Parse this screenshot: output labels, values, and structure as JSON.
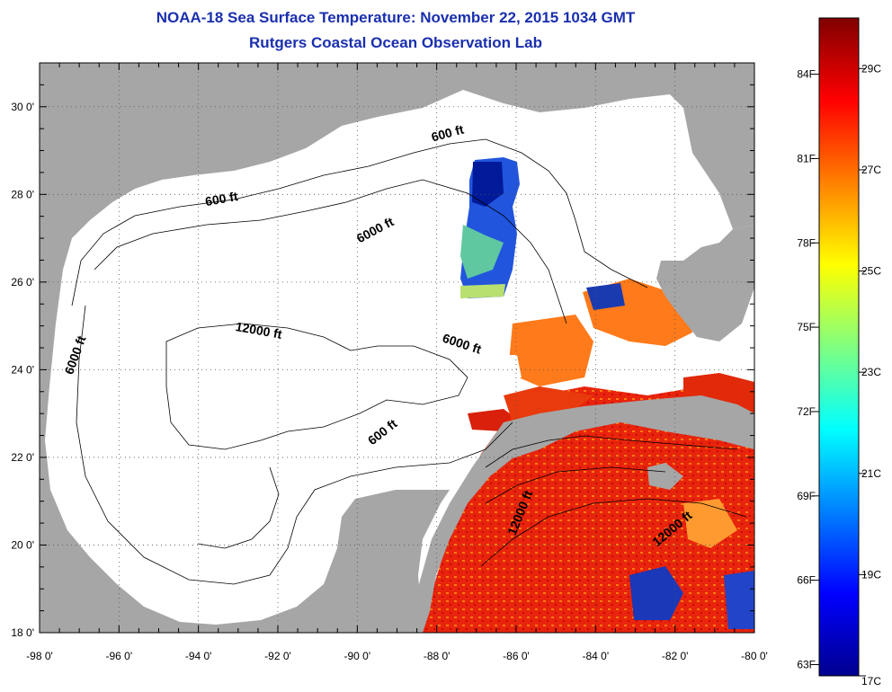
{
  "title": "NOAA-18 Sea Surface Temperature:  November 22, 2015 1034 GMT",
  "subtitle": "Rutgers Coastal Ocean Observation Lab",
  "map": {
    "lon_range": [
      -98,
      -80
    ],
    "lat_range": [
      18,
      31
    ],
    "lon_ticks": [
      {
        "value": -98,
        "label": "-98 0'"
      },
      {
        "value": -96,
        "label": "-96 0'"
      },
      {
        "value": -94,
        "label": "-94 0'"
      },
      {
        "value": -92,
        "label": "-92 0'"
      },
      {
        "value": -90,
        "label": "-90 0'"
      },
      {
        "value": -88,
        "label": "-88 0'"
      },
      {
        "value": -86,
        "label": "-86 0'"
      },
      {
        "value": -84,
        "label": "-84 0'"
      },
      {
        "value": -82,
        "label": "-82 0'"
      },
      {
        "value": -80,
        "label": "-80 0'"
      }
    ],
    "lat_ticks": [
      {
        "value": 18,
        "label": "18 0'"
      },
      {
        "value": 20,
        "label": "20 0'"
      },
      {
        "value": 22,
        "label": "22 0'"
      },
      {
        "value": 24,
        "label": "24 0'"
      },
      {
        "value": 26,
        "label": "26 0'"
      },
      {
        "value": 28,
        "label": "28 0'"
      },
      {
        "value": 30,
        "label": "30 0'"
      }
    ],
    "grid": "dotted",
    "land_color": "#a6a6a6",
    "ocean_nodata_color": "#ffffff",
    "contour_labels": [
      {
        "text": "600 ft",
        "lon": -93.4,
        "lat": 27.8,
        "angle": -10
      },
      {
        "text": "600 ft",
        "lon": -87.7,
        "lat": 29.3,
        "angle": -15
      },
      {
        "text": "6000 ft",
        "lon": -89.5,
        "lat": 27.1,
        "angle": -28
      },
      {
        "text": "12000 ft",
        "lon": -92.5,
        "lat": 24.8,
        "angle": 10
      },
      {
        "text": "6000 ft",
        "lon": -97.0,
        "lat": 24.3,
        "angle": -70
      },
      {
        "text": "6000 ft",
        "lon": -87.4,
        "lat": 24.5,
        "angle": 18
      },
      {
        "text": "600 ft",
        "lon": -89.3,
        "lat": 22.5,
        "angle": -38
      },
      {
        "text": "12000 ft",
        "lon": -85.8,
        "lat": 20.7,
        "angle": -68
      },
      {
        "text": "12000 ft",
        "lon": -82.0,
        "lat": 20.3,
        "angle": -40
      }
    ]
  },
  "colorbar": {
    "colors": [
      "#00008f",
      "#0000ff",
      "#0080ff",
      "#00ffff",
      "#80ff80",
      "#ffff00",
      "#ff8000",
      "#ff0000",
      "#800000"
    ],
    "celsius_range": [
      17,
      30
    ],
    "celsius_labels": [
      {
        "value": 17,
        "label": "17C"
      },
      {
        "value": 19,
        "label": "19C"
      },
      {
        "value": 21,
        "label": "21C"
      },
      {
        "value": 23,
        "label": "23C"
      },
      {
        "value": 25,
        "label": "25C"
      },
      {
        "value": 27,
        "label": "27C"
      },
      {
        "value": 29,
        "label": "29C"
      }
    ],
    "fahrenheit_labels": [
      {
        "value": 63,
        "label": "63F"
      },
      {
        "value": 66,
        "label": "66F"
      },
      {
        "value": 69,
        "label": "69F"
      },
      {
        "value": 72,
        "label": "72F"
      },
      {
        "value": 75,
        "label": "75F"
      },
      {
        "value": 78,
        "label": "78F"
      },
      {
        "value": 81,
        "label": "81F"
      },
      {
        "value": 84,
        "label": "84F"
      }
    ]
  }
}
